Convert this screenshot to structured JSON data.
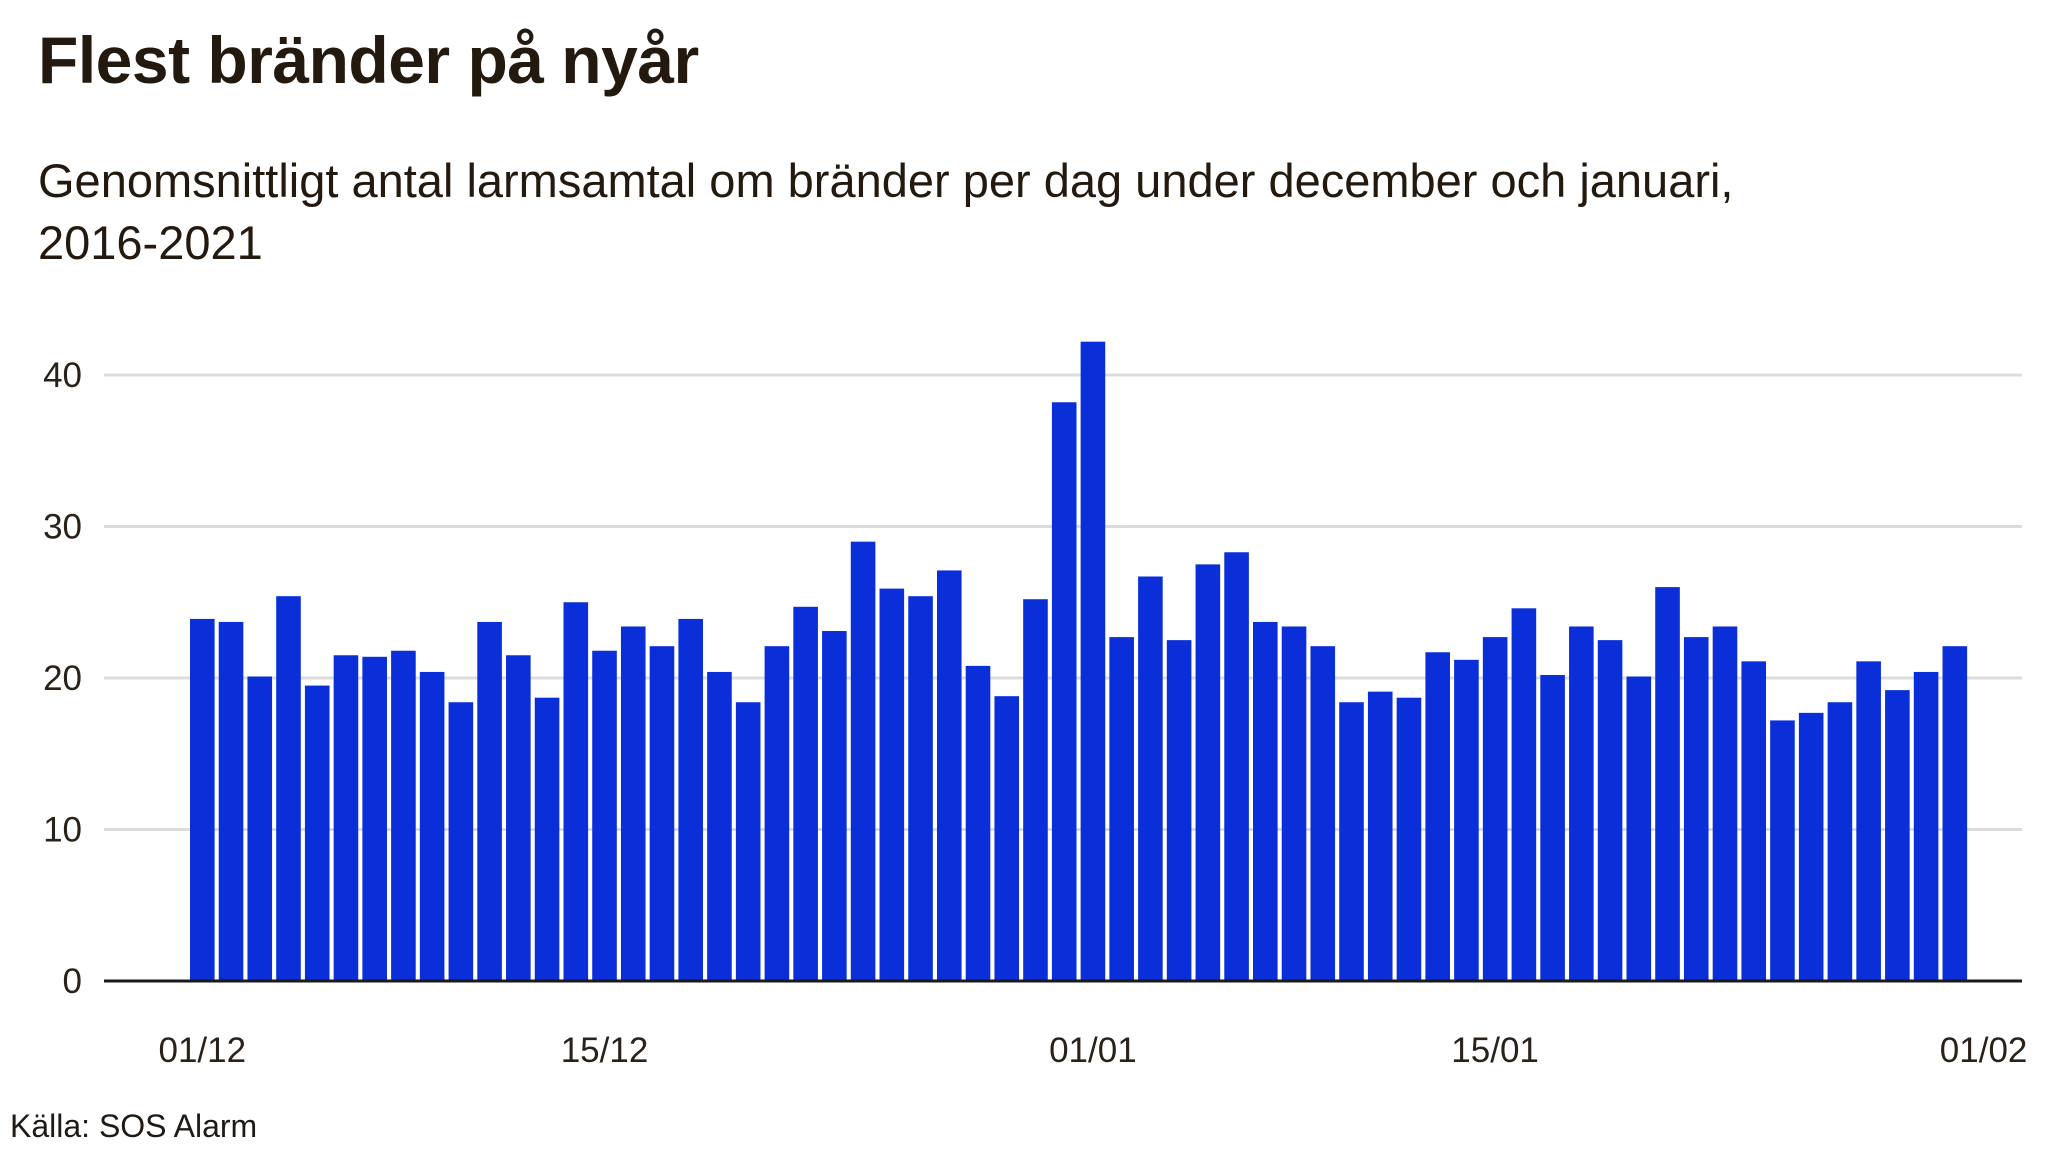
{
  "title": "Flest bränder på nyår",
  "subtitle": "Genomsnittligt antal larmsamtal om bränder per dag under december och januari, 2016-2021",
  "source": "Källa: SOS Alarm",
  "colors": {
    "bar": "#0a2fd9",
    "grid": "#dcdcdc",
    "axis": "#1a1a1a",
    "text": "#24190f"
  },
  "chart_data": {
    "type": "bar",
    "ylim": [
      0,
      44
    ],
    "yticks": [
      0,
      10,
      20,
      30,
      40
    ],
    "grid": true,
    "xticks": [
      {
        "label": "01/12",
        "index": 0
      },
      {
        "label": "15/12",
        "index": 14
      },
      {
        "label": "01/01",
        "index": 31
      },
      {
        "label": "15/01",
        "index": 45
      },
      {
        "label": "01/02",
        "index": 62
      }
    ],
    "categories": [
      "01/12",
      "02/12",
      "03/12",
      "04/12",
      "05/12",
      "06/12",
      "07/12",
      "08/12",
      "09/12",
      "10/12",
      "11/12",
      "12/12",
      "13/12",
      "14/12",
      "15/12",
      "16/12",
      "17/12",
      "18/12",
      "19/12",
      "20/12",
      "21/12",
      "22/12",
      "23/12",
      "24/12",
      "25/12",
      "26/12",
      "27/12",
      "28/12",
      "29/12",
      "30/12",
      "31/12",
      "01/01",
      "02/01",
      "03/01",
      "04/01",
      "05/01",
      "06/01",
      "07/01",
      "08/01",
      "09/01",
      "10/01",
      "11/01",
      "12/01",
      "13/01",
      "14/01",
      "15/01",
      "16/01",
      "17/01",
      "18/01",
      "19/01",
      "20/01",
      "21/01",
      "22/01",
      "23/01",
      "24/01",
      "25/01",
      "26/01",
      "27/01",
      "28/01",
      "29/01",
      "30/01",
      "31/01"
    ],
    "values": [
      23.9,
      23.7,
      20.1,
      25.4,
      19.5,
      21.5,
      21.4,
      21.8,
      20.4,
      18.4,
      23.7,
      21.5,
      18.7,
      25.0,
      21.8,
      23.4,
      22.1,
      23.9,
      20.4,
      18.4,
      22.1,
      24.7,
      23.1,
      29.0,
      25.9,
      25.4,
      27.1,
      20.8,
      18.8,
      25.2,
      38.2,
      42.2,
      22.7,
      26.7,
      22.5,
      27.5,
      28.3,
      23.7,
      23.4,
      22.1,
      18.4,
      19.1,
      18.7,
      21.7,
      21.2,
      22.7,
      24.6,
      20.2,
      23.4,
      22.5,
      20.1,
      26.0,
      22.7,
      23.4,
      21.1,
      17.2,
      17.7,
      18.4,
      21.1,
      19.2,
      20.4,
      22.1
    ]
  }
}
